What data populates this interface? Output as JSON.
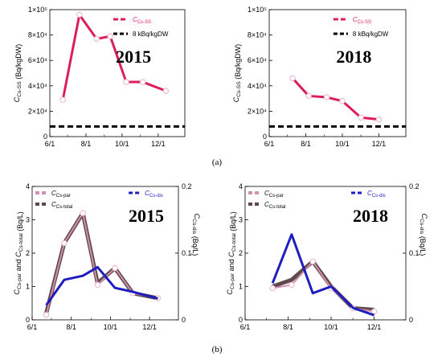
{
  "panel_labels": {
    "a": "(a)",
    "b": "(b)"
  },
  "colors": {
    "ss": "#dc1e5a",
    "ref": "#000000",
    "par": "#d48fb0",
    "total": "#5e4a4a",
    "dis": "#1e1ebe",
    "marker_fill": "#ffffff",
    "marker_edge": "#f0b0d0"
  },
  "chart_data": [
    {
      "type": "line",
      "id": "a2015",
      "annotation": "2015",
      "ylabel": "C_Cs-SS (Bq/kgDW)",
      "ylim": [
        0,
        100000
      ],
      "xlim": [
        "2015-06-01",
        "2016-01-15"
      ],
      "x_ticks": [
        "6/1",
        "8/1",
        "10/1",
        "12/1"
      ],
      "y_ticks": [
        "0",
        "2×10⁴",
        "4×10⁴",
        "6×10⁴",
        "8×10⁴",
        "1×10⁵"
      ],
      "grid": false,
      "legend": "top-right",
      "series": [
        {
          "name": "C_Cs-SS",
          "style": "dashed",
          "markers": true,
          "x": [
            "2015-06-23",
            "2015-07-21",
            "2015-08-19",
            "2015-09-11",
            "2015-10-08",
            "2015-11-05",
            "2015-12-14"
          ],
          "values": [
            29000,
            96000,
            77000,
            79000,
            43000,
            43000,
            36000
          ]
        },
        {
          "name": "8 kBq/kgDW",
          "style": "dashed-thick",
          "markers": false,
          "x": [
            "2015-06-01",
            "2016-01-15"
          ],
          "values": [
            8000,
            8000
          ]
        }
      ]
    },
    {
      "type": "line",
      "id": "a2018",
      "annotation": "2018",
      "ylabel": "C_Cs-SS (Bq/kgDW)",
      "ylim": [
        0,
        100000
      ],
      "xlim": [
        "2018-06-01",
        "2019-01-15"
      ],
      "x_ticks": [
        "6/1",
        "8/1",
        "10/1",
        "12/1"
      ],
      "y_ticks": [
        "0",
        "2×10⁴",
        "4×10⁴",
        "6×10⁴",
        "8×10⁴",
        "1×10⁵"
      ],
      "grid": false,
      "legend": "top-right",
      "series": [
        {
          "name": "C_Cs-SS",
          "style": "dashed",
          "markers": true,
          "x": [
            "2018-07-10",
            "2018-08-06",
            "2018-09-05",
            "2018-10-01",
            "2018-11-01",
            "2018-12-01"
          ],
          "values": [
            46000,
            32000,
            31000,
            28000,
            15000,
            13500
          ]
        },
        {
          "name": "8 kBq/kgDW",
          "style": "dashed-thick",
          "markers": false,
          "x": [
            "2018-06-01",
            "2019-01-15"
          ],
          "values": [
            8000,
            8000
          ]
        }
      ]
    },
    {
      "type": "line",
      "id": "b2015",
      "annotation": "2015",
      "ylabel_left": "C_Cs-par and C_Cs-total (Bq/L)",
      "ylabel_right": "C_Cs-dis (Bq/L)",
      "ylim": [
        0,
        4
      ],
      "ylim_right": [
        0,
        0.2
      ],
      "xlim": [
        "2015-06-01",
        "2016-01-15"
      ],
      "x_ticks": [
        "6/1",
        "8/1",
        "10/1",
        "12/1"
      ],
      "y_ticks": [
        "0",
        "1",
        "2",
        "3",
        "4"
      ],
      "y_ticks_right": [
        "0",
        "0.1",
        "0.2"
      ],
      "grid": false,
      "legend": "top-left and top-right",
      "series": [
        {
          "name": "C_Cs-total",
          "axis": "left",
          "style": "solid-thick",
          "markers": false,
          "x": [
            "2015-06-23",
            "2015-07-21",
            "2015-08-19",
            "2015-09-11",
            "2015-10-08",
            "2015-11-05",
            "2015-12-14"
          ],
          "values": [
            0.2,
            2.3,
            3.2,
            1.1,
            1.55,
            0.8,
            0.65
          ]
        },
        {
          "name": "C_Cs-par",
          "axis": "left",
          "style": "solid",
          "markers": true,
          "x": [
            "2015-06-23",
            "2015-07-21",
            "2015-08-19",
            "2015-09-11",
            "2015-10-08",
            "2015-11-05",
            "2015-12-14"
          ],
          "values": [
            0.15,
            2.3,
            3.2,
            1.05,
            1.55,
            0.8,
            0.65
          ]
        },
        {
          "name": "C_Cs-dis",
          "axis": "right",
          "style": "solid",
          "markers": false,
          "x": [
            "2015-06-23",
            "2015-07-21",
            "2015-08-19",
            "2015-09-11",
            "2015-10-08",
            "2015-11-05",
            "2015-12-14"
          ],
          "values": [
            0.022,
            0.06,
            0.066,
            0.079,
            0.048,
            0.042,
            0.032
          ]
        }
      ]
    },
    {
      "type": "line",
      "id": "b2018",
      "annotation": "2018",
      "ylabel_left": "C_Cs-par and C_Cs-total (Bq/L)",
      "ylabel_right": "C_Cs-dis (Bq/L)",
      "ylim": [
        0,
        4
      ],
      "ylim_right": [
        0,
        0.2
      ],
      "xlim": [
        "2018-06-01",
        "2019-01-15"
      ],
      "x_ticks": [
        "6/1",
        "8/1",
        "10/1",
        "12/1"
      ],
      "y_ticks": [
        "0",
        "1",
        "2",
        "3",
        "4"
      ],
      "y_ticks_right": [
        "0",
        "0.1",
        "0.2"
      ],
      "grid": false,
      "legend": "top-left and top-right",
      "series": [
        {
          "name": "C_Cs-total",
          "axis": "left",
          "style": "solid-thick",
          "markers": false,
          "x": [
            "2018-07-10",
            "2018-08-06",
            "2018-09-05",
            "2018-10-01",
            "2018-11-01",
            "2018-12-01"
          ],
          "values": [
            1.0,
            1.2,
            1.75,
            1.0,
            0.35,
            0.3
          ]
        },
        {
          "name": "C_Cs-par",
          "axis": "left",
          "style": "solid",
          "markers": true,
          "x": [
            "2018-07-10",
            "2018-08-06",
            "2018-09-05",
            "2018-10-01",
            "2018-11-01",
            "2018-12-01"
          ],
          "values": [
            0.95,
            1.05,
            1.75,
            0.95,
            0.35,
            0.25
          ]
        },
        {
          "name": "C_Cs-dis",
          "axis": "right",
          "style": "solid",
          "markers": false,
          "x": [
            "2018-07-10",
            "2018-08-06",
            "2018-09-05",
            "2018-10-01",
            "2018-11-01",
            "2018-12-01"
          ],
          "values": [
            0.055,
            0.128,
            0.04,
            0.05,
            0.018,
            0.007
          ]
        }
      ]
    }
  ]
}
